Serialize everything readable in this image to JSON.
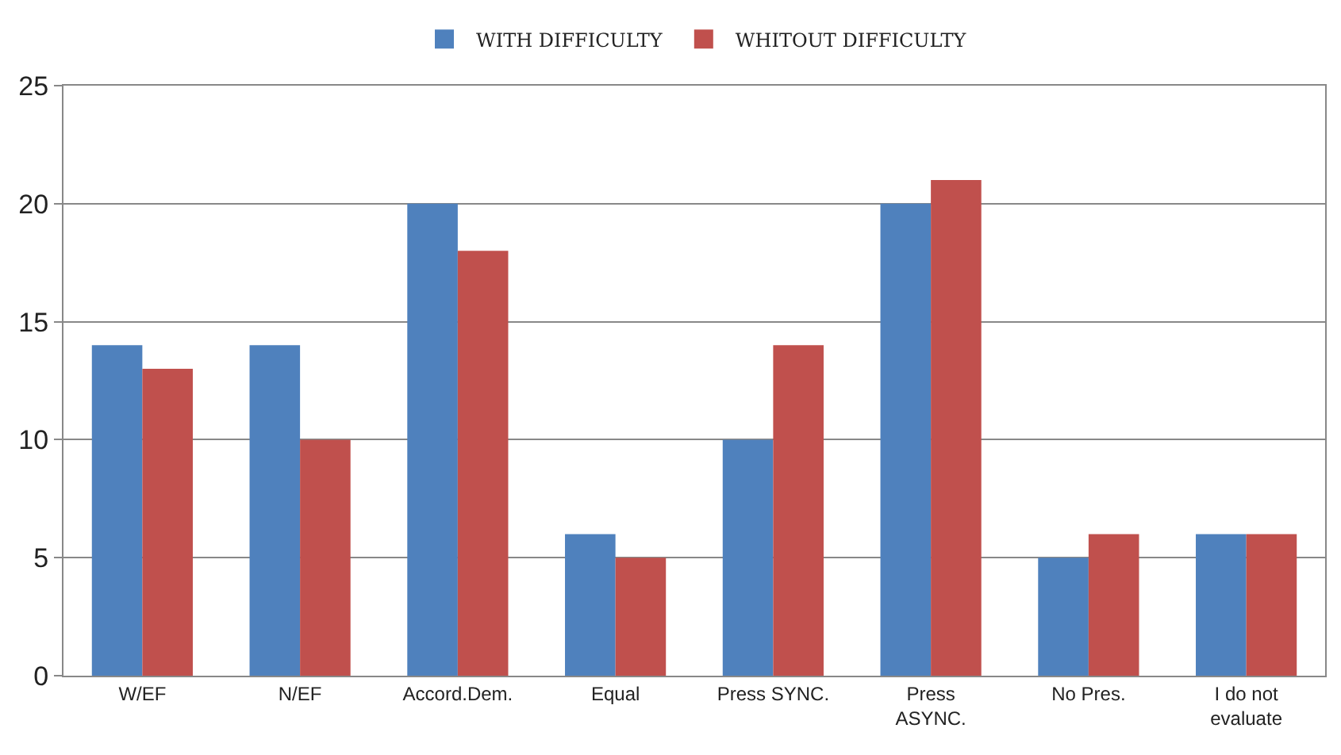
{
  "chart_data": {
    "type": "bar",
    "categories": [
      "W/EF",
      "N/EF",
      "Accord.Dem.",
      "Equal",
      "Press SYNC.",
      "Press ASYNC.",
      "No Pres.",
      "I do not evaluate"
    ],
    "series": [
      {
        "name": "WITH DIFFICULTY",
        "color": "#4f81bd",
        "values": [
          14,
          14,
          20,
          6,
          10,
          20,
          5,
          6
        ]
      },
      {
        "name": "WHITOUT DIFFICULTY",
        "color": "#c0504d",
        "values": [
          13,
          10,
          18,
          5,
          14,
          21,
          6,
          6
        ]
      }
    ],
    "ylim": [
      0,
      25
    ],
    "yticks": [
      0,
      5,
      10,
      15,
      20,
      25
    ],
    "grid": "y",
    "legend": "top"
  }
}
